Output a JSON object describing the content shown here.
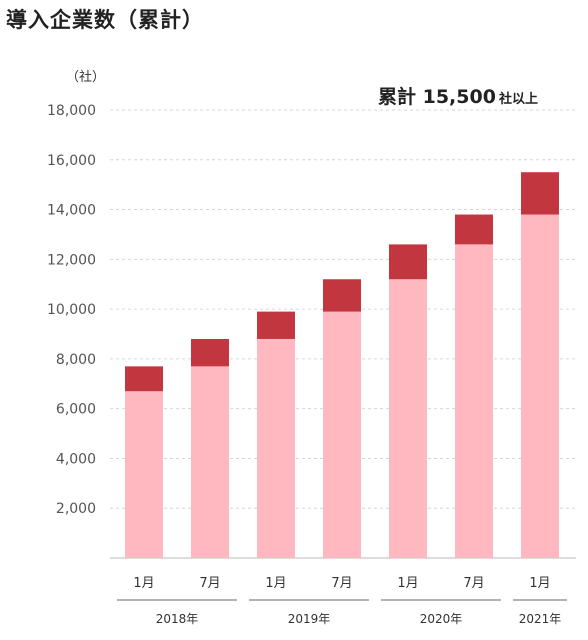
{
  "title": "導入企業数（累計）",
  "unit_label": "（社）",
  "total": {
    "label": "累計 15,500",
    "suffix": "社以上"
  },
  "colors": {
    "base": "#ffb8c0",
    "increment": "#c1363f",
    "grid": "#d6d6d6",
    "axis": "#999999"
  },
  "chart_data": {
    "type": "bar",
    "stacked": true,
    "categories": [
      "1月",
      "7月",
      "1月",
      "7月",
      "1月",
      "7月",
      "1月"
    ],
    "year_groups": [
      {
        "label": "2018年",
        "count": 2
      },
      {
        "label": "2019年",
        "count": 2
      },
      {
        "label": "2020年",
        "count": 2
      },
      {
        "label": "2021年",
        "count": 1
      }
    ],
    "series": [
      {
        "values": [
          6700,
          7700,
          8800,
          9900,
          11200,
          12600,
          13800
        ]
      },
      {
        "values": [
          1000,
          1100,
          1100,
          1300,
          1400,
          1200,
          1700
        ]
      }
    ],
    "ylim": [
      0,
      18000
    ],
    "yticks": [
      "2,000",
      "4,000",
      "6,000",
      "8,000",
      "10,000",
      "12,000",
      "14,000",
      "16,000",
      "18,000"
    ],
    "grid": true
  }
}
